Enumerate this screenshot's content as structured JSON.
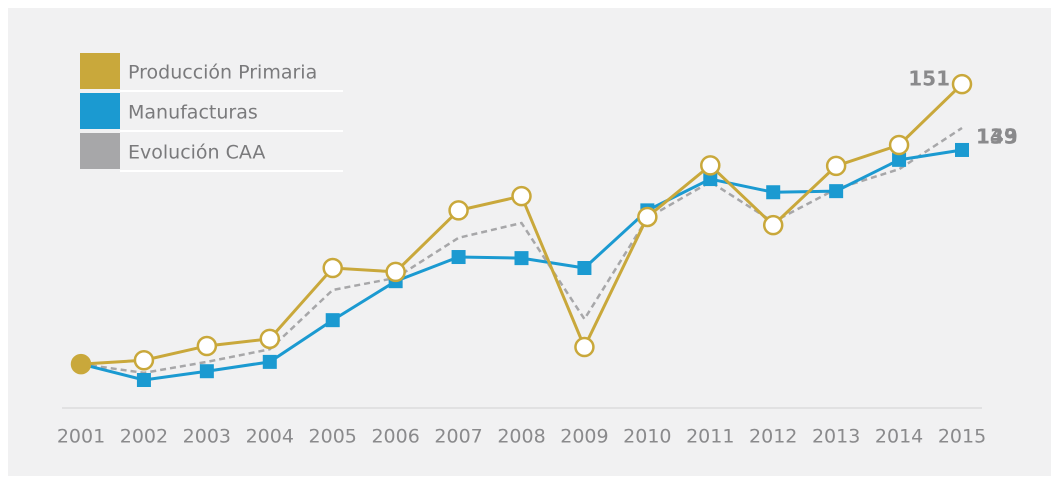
{
  "chart_data": {
    "type": "line",
    "categories": [
      "2001",
      "2002",
      "2003",
      "2004",
      "2005",
      "2006",
      "2007",
      "2008",
      "2009",
      "2010",
      "2011",
      "2012",
      "2013",
      "2014",
      "2015"
    ],
    "series": [
      {
        "name": "Producción Primaria",
        "color": "#c9a83b",
        "values": [
          100,
          100.7,
          103.3,
          104.6,
          117.5,
          116.8,
          128,
          130.6,
          103.1,
          126.8,
          136.2,
          125.3,
          136.1,
          139.9,
          151
        ]
      },
      {
        "name": "Manufacturas",
        "color": "#1b9ad1",
        "values": [
          100,
          97.1,
          98.7,
          100.4,
          108,
          115.1,
          119.5,
          119.3,
          117.5,
          128,
          133.7,
          131.3,
          131.5,
          137.2,
          139
        ]
      },
      {
        "name": "Evolución CAA",
        "color": "#a7a7a9",
        "values": [
          100,
          98.4,
          100.4,
          102.7,
          113.5,
          115.7,
          123,
          125.7,
          108.2,
          126.6,
          133.2,
          125.9,
          131.9,
          135.5,
          143
        ]
      }
    ],
    "ylim": [
      92,
      152
    ]
  }
}
